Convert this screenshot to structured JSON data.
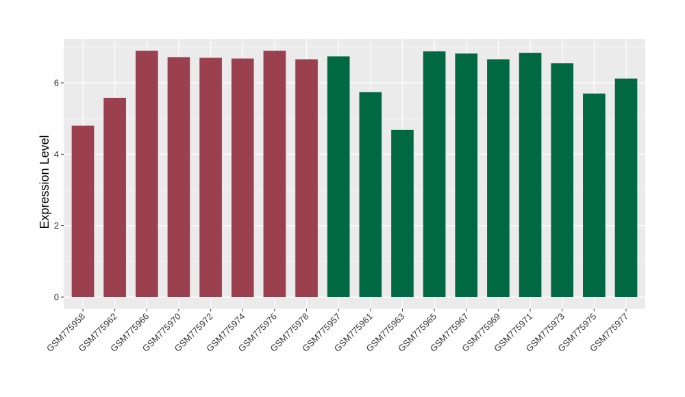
{
  "chart_data": {
    "type": "bar",
    "title": "",
    "xlabel": "",
    "ylabel": "Expression Level",
    "ylim": [
      0,
      7.2
    ],
    "yticks": [
      0,
      2,
      4,
      6
    ],
    "grid": true,
    "categories": [
      "GSM775958",
      "GSM775962",
      "GSM775966",
      "GSM775970",
      "GSM775972",
      "GSM775974",
      "GSM775976",
      "GSM775978",
      "GSM775957",
      "GSM775961",
      "GSM775963",
      "GSM775965",
      "GSM775967",
      "GSM775969",
      "GSM775971",
      "GSM775973",
      "GSM775975",
      "GSM775977"
    ],
    "values": [
      4.8,
      5.58,
      6.9,
      6.72,
      6.7,
      6.68,
      6.9,
      6.66,
      6.74,
      5.74,
      4.68,
      6.88,
      6.82,
      6.66,
      6.84,
      6.55,
      5.7,
      6.12
    ],
    "bar_groups": [
      "a",
      "a",
      "a",
      "a",
      "a",
      "a",
      "a",
      "a",
      "b",
      "b",
      "b",
      "b",
      "b",
      "b",
      "b",
      "b",
      "b",
      "b"
    ],
    "colors": {
      "a": "#9b404f",
      "b": "#016844"
    },
    "panel_background": "#ebebeb",
    "grid_color": "#ffffff"
  }
}
